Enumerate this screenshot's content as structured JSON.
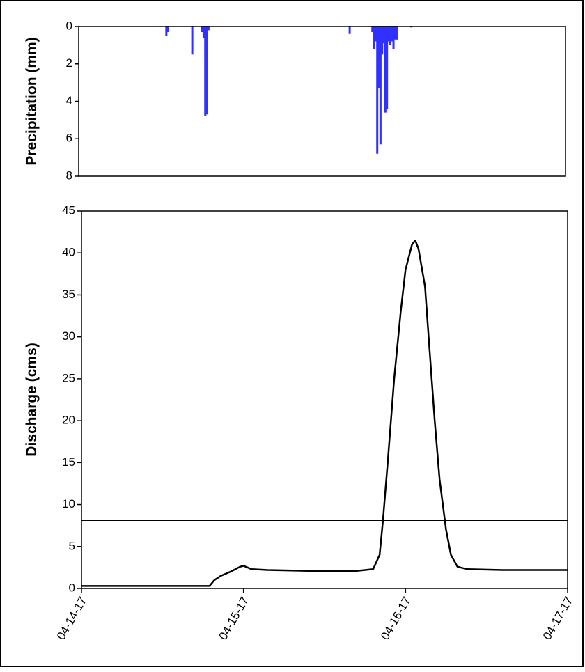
{
  "chart_data": [
    {
      "type": "bar",
      "y_label": "Precipitation (mm)",
      "color": "#3030ff",
      "inverted": true,
      "xlim": [
        0,
        3
      ],
      "ylim": [
        0,
        8
      ],
      "yticks": [
        0,
        2,
        4,
        6,
        8
      ],
      "x": [
        0.54,
        0.55,
        0.7,
        0.76,
        0.77,
        0.78,
        0.79,
        0.8,
        1.67,
        1.81,
        1.82,
        1.83,
        1.84,
        1.85,
        1.86,
        1.87,
        1.88,
        1.89,
        1.9,
        1.91,
        1.92,
        1.93,
        1.94,
        1.95,
        1.96,
        2.05
      ],
      "values": [
        0.5,
        0.3,
        1.5,
        0.3,
        0.6,
        4.8,
        4.7,
        0.2,
        0.4,
        0.3,
        1.2,
        0.8,
        6.8,
        3.3,
        6.3,
        1.5,
        0.9,
        4.6,
        4.4,
        0.8,
        1.0,
        0.8,
        1.2,
        0.7,
        0.7,
        0.05
      ]
    },
    {
      "type": "line",
      "y_label": "Discharge (cms)",
      "color": "#000000",
      "reference_line": 8.1,
      "xlim": [
        0,
        3
      ],
      "ylim": [
        0,
        45
      ],
      "yticks": [
        0,
        5,
        10,
        15,
        20,
        25,
        30,
        35,
        40,
        45
      ],
      "xticks": [
        {
          "value": 0,
          "label": "04-14-17"
        },
        {
          "value": 1,
          "label": "04-15-17"
        },
        {
          "value": 2,
          "label": "04-16-17"
        },
        {
          "value": 3,
          "label": "04-17-17"
        }
      ],
      "x": [
        0,
        0.79,
        0.82,
        0.86,
        0.92,
        0.98,
        1.0,
        1.05,
        1.15,
        1.4,
        1.7,
        1.8,
        1.84,
        1.86,
        1.89,
        1.93,
        1.97,
        2.0,
        2.04,
        2.06,
        2.08,
        2.12,
        2.15,
        2.18,
        2.21,
        2.25,
        2.28,
        2.32,
        2.38,
        2.6,
        3.0
      ],
      "values": [
        0.3,
        0.3,
        1.0,
        1.5,
        2.0,
        2.6,
        2.7,
        2.3,
        2.2,
        2.1,
        2.1,
        2.3,
        4,
        8,
        15,
        25,
        33,
        38,
        41.0,
        41.5,
        40.5,
        36,
        28,
        20,
        13,
        7,
        4,
        2.6,
        2.3,
        2.2,
        2.2
      ]
    }
  ]
}
